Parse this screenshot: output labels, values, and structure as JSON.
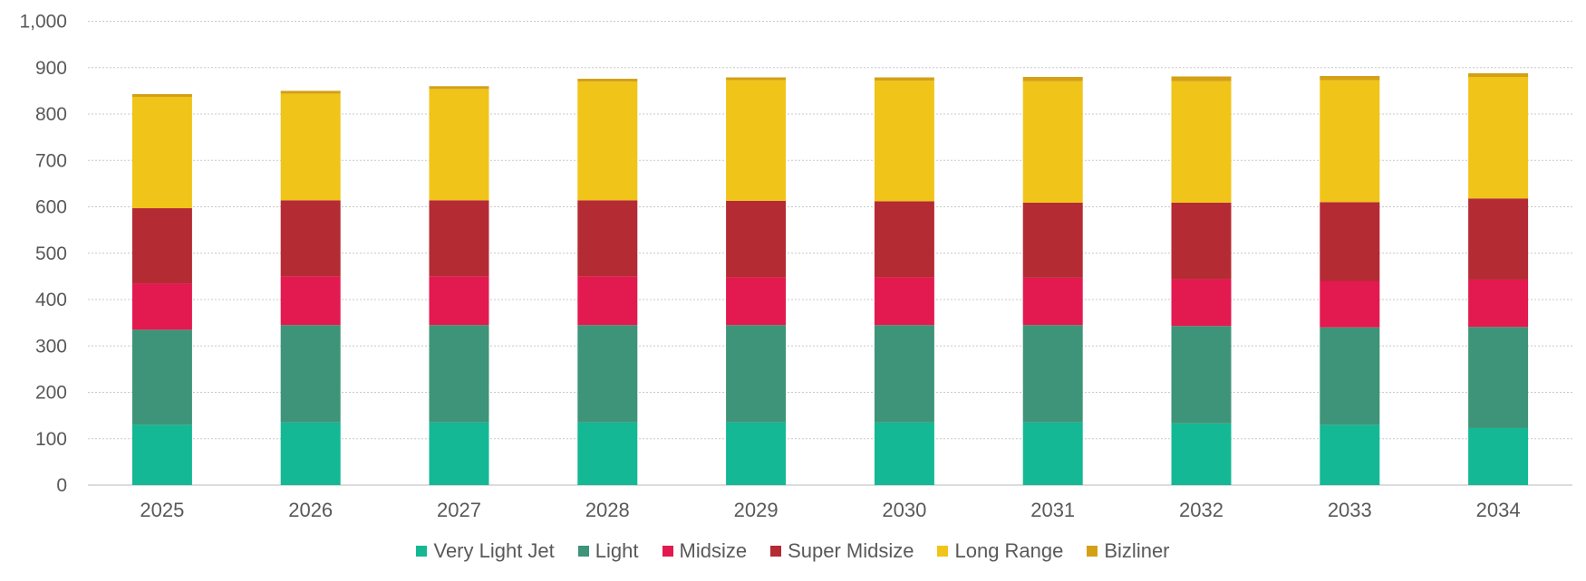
{
  "chart_data": {
    "type": "bar",
    "stacked": true,
    "categories": [
      "2025",
      "2026",
      "2027",
      "2028",
      "2029",
      "2030",
      "2031",
      "2032",
      "2033",
      "2034"
    ],
    "series": [
      {
        "name": "Very Light Jet",
        "color": "#14B894",
        "values": [
          130,
          135,
          135,
          135,
          135,
          135,
          135,
          133,
          130,
          123
        ]
      },
      {
        "name": "Light",
        "color": "#3E9478",
        "values": [
          205,
          210,
          210,
          210,
          210,
          210,
          210,
          210,
          210,
          218
        ]
      },
      {
        "name": "Midsize",
        "color": "#E21A4F",
        "values": [
          100,
          105,
          105,
          105,
          103,
          103,
          102,
          101,
          100,
          102
        ]
      },
      {
        "name": "Super Midsize",
        "color": "#B42B34",
        "values": [
          162,
          164,
          164,
          164,
          165,
          164,
          162,
          165,
          170,
          175
        ]
      },
      {
        "name": "Long Range",
        "color": "#F0C419",
        "values": [
          240,
          230,
          240,
          256,
          260,
          260,
          262,
          262,
          263,
          262
        ]
      },
      {
        "name": "Bizliner",
        "color": "#D4A016",
        "values": [
          6,
          6,
          6,
          6,
          6,
          7,
          9,
          10,
          9,
          8
        ]
      }
    ],
    "ylim": [
      0,
      1000
    ],
    "yticks": [
      "0",
      "100",
      "200",
      "300",
      "400",
      "500",
      "600",
      "700",
      "800",
      "900",
      "1,000"
    ],
    "grid": true,
    "legend_position": "bottom"
  }
}
